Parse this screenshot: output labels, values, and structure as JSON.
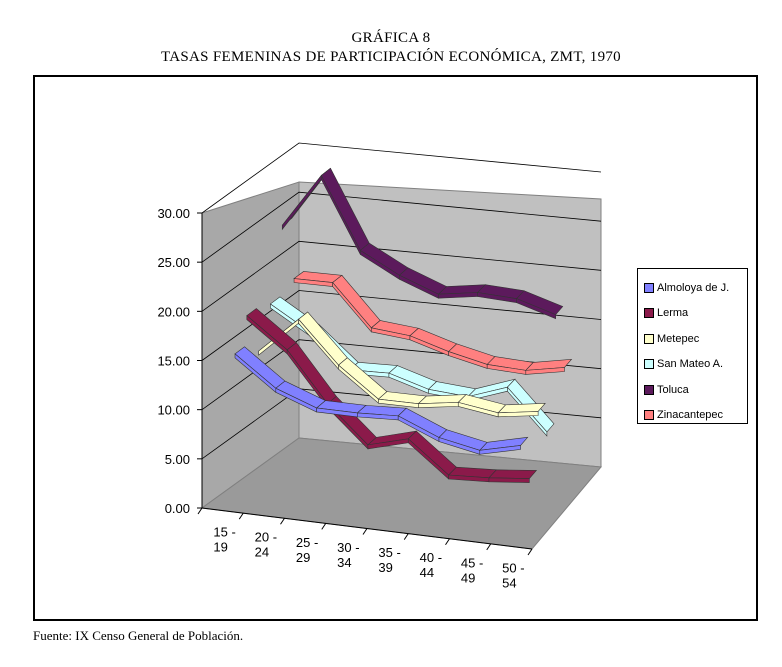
{
  "figure_title": "GRÁFICA 8",
  "figure_subtitle": "TASAS FEMENINAS DE PARTICIPACIÓN ECONÓMICA, ZMT, 1970",
  "source": "Fuente: IX Censo General de Población.",
  "chart_data": {
    "type": "line",
    "style": "3d-line",
    "categories": [
      "15 - 19",
      "20 - 24",
      "25 - 29",
      "30 - 34",
      "35 - 39",
      "40 - 44",
      "45 - 49",
      "50 - 54"
    ],
    "ylim": [
      0,
      30
    ],
    "yticks": [
      "0.00",
      "5.00",
      "10.00",
      "15.00",
      "20.00",
      "25.00",
      "30.00"
    ],
    "grid": true,
    "legend_position": "right",
    "series": [
      {
        "name": "Almoloya de J.",
        "color": "#8080ff",
        "values": [
          15.0,
          12.0,
          10.5,
          10.5,
          10.7,
          9.0,
          8.2,
          9.2
        ]
      },
      {
        "name": "Lerma",
        "color": "#8b1a4a",
        "values": [
          18.0,
          15.0,
          10.0,
          6.3,
          7.4,
          4.2,
          4.4,
          4.8
        ]
      },
      {
        "name": "Metepec",
        "color": "#ffffcc",
        "values": [
          13.5,
          17.2,
          13.0,
          10.0,
          10.0,
          10.6,
          10.0,
          10.6
        ]
      },
      {
        "name": "San Mateo A.",
        "color": "#ccffff",
        "values": [
          17.4,
          15.0,
          11.6,
          11.7,
          10.5,
          10.2,
          11.6,
          7.5
        ]
      },
      {
        "name": "Toluca",
        "color": "#5c1a5c",
        "values": [
          24.5,
          30.0,
          22.8,
          20.7,
          19.2,
          19.8,
          19.6,
          18.4
        ]
      },
      {
        "name": "Zinacantepec",
        "color": "#ff8080",
        "values": [
          18.2,
          18.2,
          14.0,
          13.6,
          12.4,
          11.5,
          11.3,
          12.0
        ]
      }
    ]
  }
}
